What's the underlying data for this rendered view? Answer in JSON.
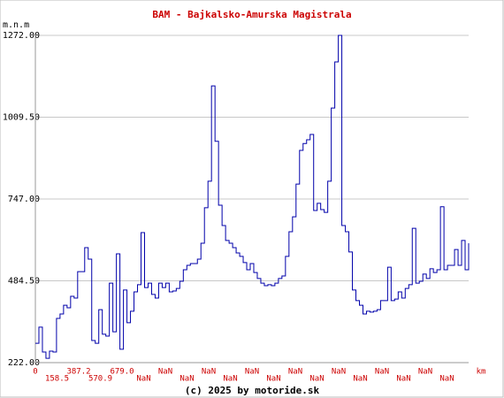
{
  "chart_data": {
    "type": "step-line",
    "title": "BAM - Bajkalsko-Amurska Magistrala",
    "y_label": "m.n.m",
    "x_unit": "km",
    "footer": "(c) 2025 by motoride.sk",
    "x_labels": [
      "0",
      "158.5",
      "387.2",
      "570.9",
      "679.0",
      "NaN",
      "NaN",
      "NaN",
      "NaN",
      "NaN",
      "NaN",
      "NaN",
      "NaN",
      "NaN",
      "NaN",
      "NaN",
      "NaN",
      "NaN",
      "NaN",
      "NaN"
    ],
    "color": "#0000aa",
    "grid": true,
    "ylim": [
      222,
      1272
    ],
    "yticks": [
      {
        "value": 222,
        "label": "222.00"
      },
      {
        "value": 484.5,
        "label": "484.50"
      },
      {
        "value": 747,
        "label": "747.00"
      },
      {
        "value": 1009.5,
        "label": "1009.50"
      },
      {
        "value": 1272,
        "label": "1272.00"
      }
    ],
    "values": [
      284,
      336,
      256,
      236,
      259,
      256,
      364,
      378,
      406,
      398,
      435,
      429,
      514,
      514,
      591,
      554,
      293,
      284,
      392,
      313,
      307,
      477,
      321,
      571,
      265,
      455,
      350,
      387,
      449,
      472,
      639,
      463,
      477,
      441,
      429,
      477,
      463,
      477,
      449,
      452,
      460,
      483,
      520,
      534,
      540,
      540,
      554,
      605,
      719,
      804,
      1110,
      932,
      727,
      662,
      614,
      605,
      591,
      574,
      563,
      543,
      520,
      540,
      511,
      492,
      477,
      469,
      472,
      469,
      477,
      492,
      500,
      563,
      642,
      690,
      795,
      903,
      925,
      937,
      954,
      710,
      733,
      713,
      704,
      804,
      1039,
      1187,
      1272,
      662,
      642,
      577,
      455,
      421,
      406,
      378,
      387,
      384,
      387,
      392,
      421,
      421,
      528,
      421,
      426,
      449,
      429,
      460,
      472,
      653,
      477,
      483,
      506,
      492,
      523,
      511,
      520,
      722,
      520,
      534,
      534,
      585,
      534,
      614,
      520,
      605
    ]
  }
}
